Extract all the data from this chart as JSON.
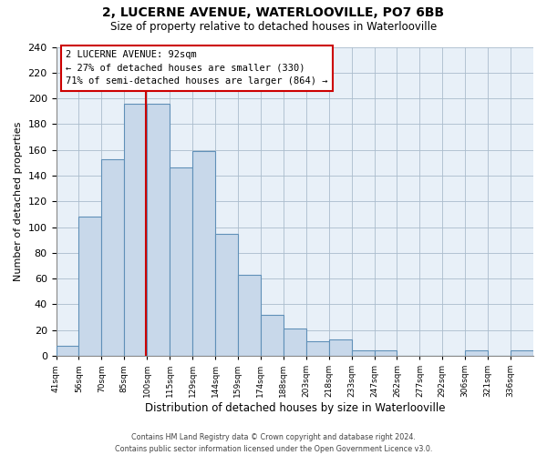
{
  "title": "2, LUCERNE AVENUE, WATERLOOVILLE, PO7 6BB",
  "subtitle": "Size of property relative to detached houses in Waterlooville",
  "xlabel": "Distribution of detached houses by size in Waterlooville",
  "ylabel": "Number of detached properties",
  "footer_line1": "Contains HM Land Registry data © Crown copyright and database right 2024.",
  "footer_line2": "Contains public sector information licensed under the Open Government Licence v3.0.",
  "bin_labels": [
    "41sqm",
    "56sqm",
    "70sqm",
    "85sqm",
    "100sqm",
    "115sqm",
    "129sqm",
    "144sqm",
    "159sqm",
    "174sqm",
    "188sqm",
    "203sqm",
    "218sqm",
    "233sqm",
    "247sqm",
    "262sqm",
    "277sqm",
    "292sqm",
    "306sqm",
    "321sqm",
    "336sqm"
  ],
  "bin_counts": [
    8,
    108,
    153,
    196,
    196,
    146,
    159,
    95,
    63,
    32,
    21,
    11,
    13,
    4,
    4,
    0,
    0,
    0,
    4,
    0,
    4
  ],
  "bar_color": "#c8d8ea",
  "bar_edge_color": "#6090b8",
  "property_label": "2 LUCERNE AVENUE: 92sqm",
  "annotation_line1": "← 27% of detached houses are smaller (330)",
  "annotation_line2": "71% of semi-detached houses are larger (864) →",
  "vline_color": "#cc0000",
  "vline_x_index": 3.97,
  "annotation_box_color": "#ffffff",
  "annotation_box_edge": "#cc0000",
  "ylim": [
    0,
    240
  ],
  "yticks": [
    0,
    20,
    40,
    60,
    80,
    100,
    120,
    140,
    160,
    180,
    200,
    220,
    240
  ],
  "n_bins": 21,
  "plot_bg_color": "#e8f0f8",
  "fig_bg_color": "#ffffff"
}
